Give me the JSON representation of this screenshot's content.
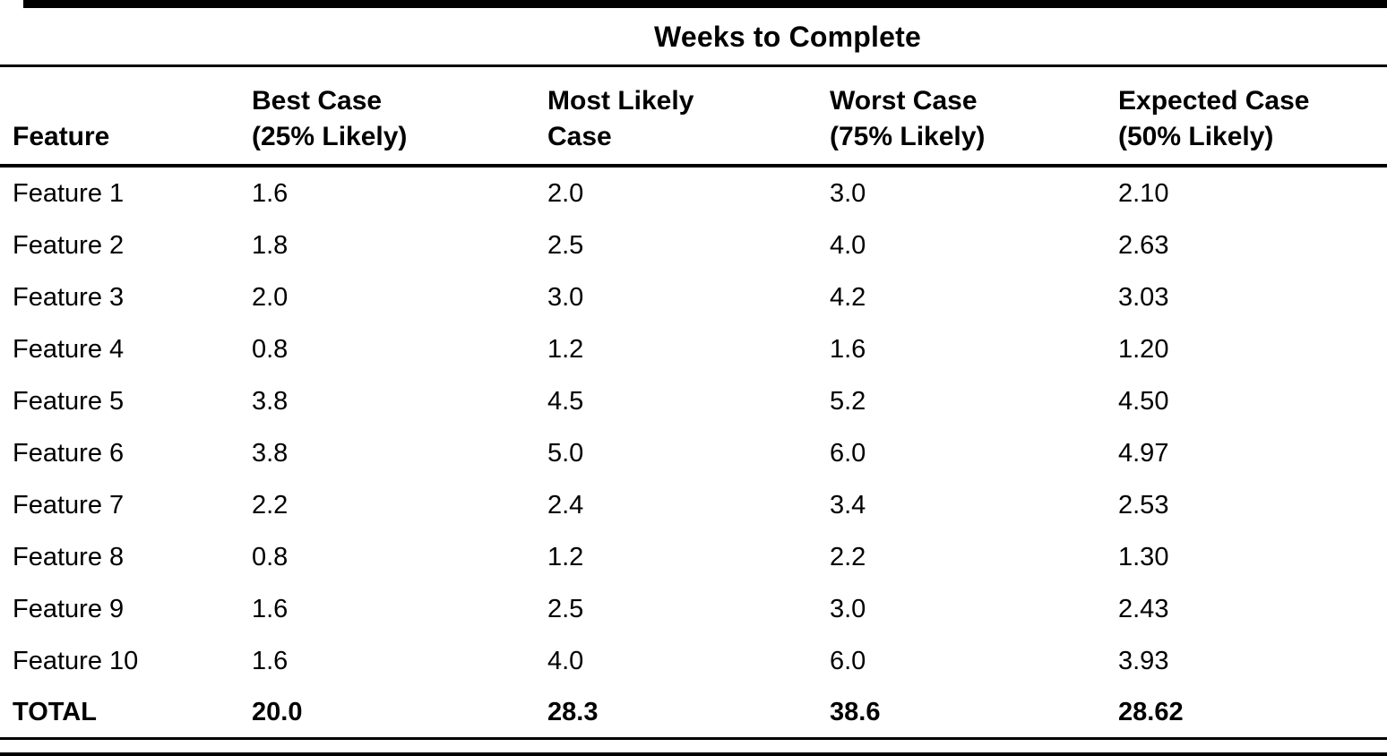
{
  "page": {
    "background": "#ffffff",
    "text_color": "#000000",
    "rule_color": "#000000"
  },
  "table": {
    "span_header": "Weeks to Complete",
    "columns": [
      {
        "label": "Feature",
        "sublabel": ""
      },
      {
        "label": "Best Case",
        "sublabel": "(25% Likely)"
      },
      {
        "label": "Most Likely",
        "sublabel": "Case"
      },
      {
        "label": "Worst Case",
        "sublabel": "(75% Likely)"
      },
      {
        "label": "Expected Case",
        "sublabel": "(50% Likely)"
      }
    ],
    "rows": [
      {
        "feature": "Feature 1",
        "values": [
          "1.6",
          "2.0",
          "3.0",
          "2.10"
        ]
      },
      {
        "feature": "Feature 2",
        "values": [
          "1.8",
          "2.5",
          "4.0",
          "2.63"
        ]
      },
      {
        "feature": "Feature 3",
        "values": [
          "2.0",
          "3.0",
          "4.2",
          "3.03"
        ]
      },
      {
        "feature": "Feature 4",
        "values": [
          "0.8",
          "1.2",
          "1.6",
          "1.20"
        ]
      },
      {
        "feature": "Feature 5",
        "values": [
          "3.8",
          "4.5",
          "5.2",
          "4.50"
        ]
      },
      {
        "feature": "Feature 6",
        "values": [
          "3.8",
          "5.0",
          "6.0",
          "4.97"
        ]
      },
      {
        "feature": "Feature 7",
        "values": [
          "2.2",
          "2.4",
          "3.4",
          "2.53"
        ]
      },
      {
        "feature": "Feature 8",
        "values": [
          "0.8",
          "1.2",
          "2.2",
          "1.30"
        ]
      },
      {
        "feature": "Feature 9",
        "values": [
          "1.6",
          "2.5",
          "3.0",
          "2.43"
        ]
      },
      {
        "feature": "Feature 10",
        "values": [
          "1.6",
          "4.0",
          "6.0",
          "3.93"
        ]
      }
    ],
    "total": {
      "feature": "TOTAL",
      "values": [
        "20.0",
        "28.3",
        "38.6",
        "28.62"
      ]
    }
  }
}
